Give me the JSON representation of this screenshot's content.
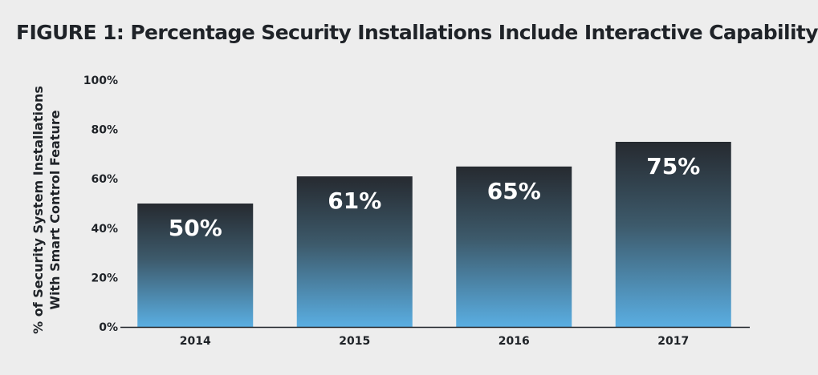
{
  "title": "FIGURE 1: Percentage Security Installations Include Interactive Capability",
  "chart_data": {
    "type": "bar",
    "title": "FIGURE 1: Percentage Security Installations Include Interactive Capability",
    "xlabel": "",
    "ylabel": [
      "% of Security System Installations",
      "With Smart Control Feature"
    ],
    "categories": [
      "2014",
      "2015",
      "2016",
      "2017"
    ],
    "values": [
      50,
      61,
      65,
      75
    ],
    "data_labels": [
      "50%",
      "61%",
      "65%",
      "75%"
    ],
    "ylim": [
      0,
      100
    ],
    "y_ticks": [
      0,
      20,
      40,
      60,
      80,
      100
    ],
    "y_tick_labels": [
      "0%",
      "20%",
      "40%",
      "60%",
      "80%",
      "100%"
    ],
    "grid": false,
    "legend": "none",
    "colors": {
      "bar_top": "#262a30",
      "bar_mid": "#3d5a6b",
      "bar_bottom": "#5aaee2",
      "axis": "#1f2328"
    }
  }
}
